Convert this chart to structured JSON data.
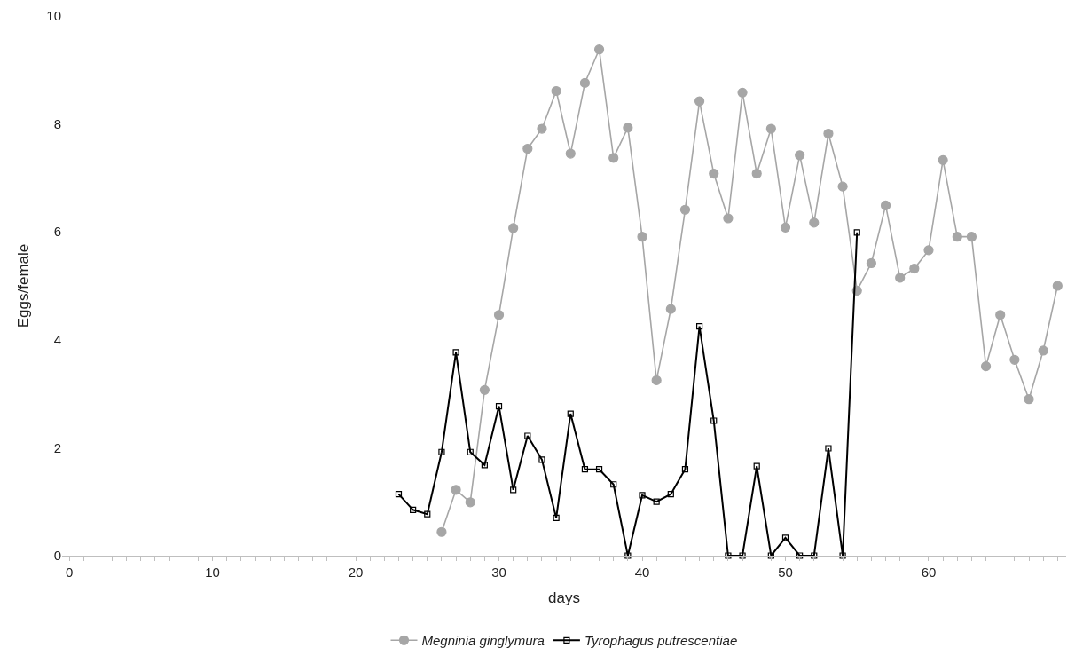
{
  "chart_data": {
    "type": "line",
    "xlabel": "days",
    "ylabel": "Eggs/female",
    "xlim": [
      -0.5,
      69.6
    ],
    "ylim": [
      0,
      10
    ],
    "yticks": [
      0,
      2,
      4,
      6,
      8,
      10
    ],
    "xticks": [
      0,
      {
        "value": 1,
        "label": null
      },
      {
        "value": 2,
        "label": null
      },
      {
        "value": 3,
        "label": null
      },
      {
        "value": 4,
        "label": null
      },
      {
        "value": 5,
        "label": null
      },
      {
        "value": 6,
        "label": null
      },
      {
        "value": 7,
        "label": null
      },
      {
        "value": 8,
        "label": null
      },
      {
        "value": 9,
        "label": null
      },
      10,
      {
        "value": 11,
        "label": null
      },
      {
        "value": 12,
        "label": null
      },
      {
        "value": 13,
        "label": null
      },
      {
        "value": 14,
        "label": null
      },
      {
        "value": 15,
        "label": null
      },
      {
        "value": 16,
        "label": null
      },
      {
        "value": 17,
        "label": null
      },
      {
        "value": 18,
        "label": null
      },
      {
        "value": 19,
        "label": null
      },
      20,
      {
        "value": 21,
        "label": null
      },
      {
        "value": 22,
        "label": null
      },
      {
        "value": 23,
        "label": null
      },
      {
        "value": 24,
        "label": null
      },
      {
        "value": 25,
        "label": null
      },
      {
        "value": 26,
        "label": null
      },
      {
        "value": 27,
        "label": null
      },
      {
        "value": 28,
        "label": null
      },
      {
        "value": 29,
        "label": null
      },
      30,
      {
        "value": 31,
        "label": null
      },
      {
        "value": 32,
        "label": null
      },
      {
        "value": 33,
        "label": null
      },
      {
        "value": 34,
        "label": null
      },
      {
        "value": 35,
        "label": null
      },
      {
        "value": 36,
        "label": null
      },
      {
        "value": 37,
        "label": null
      },
      {
        "value": 38,
        "label": null
      },
      {
        "value": 39,
        "label": null
      },
      40,
      {
        "value": 41,
        "label": null
      },
      {
        "value": 42,
        "label": null
      },
      {
        "value": 43,
        "label": null
      },
      {
        "value": 44,
        "label": null
      },
      {
        "value": 45,
        "label": null
      },
      {
        "value": 46,
        "label": null
      },
      {
        "value": 47,
        "label": null
      },
      {
        "value": 48,
        "label": null
      },
      {
        "value": 49,
        "label": null
      },
      50,
      {
        "value": 51,
        "label": null
      },
      {
        "value": 52,
        "label": null
      },
      {
        "value": 53,
        "label": null
      },
      {
        "value": 54,
        "label": null
      },
      {
        "value": 55,
        "label": null
      },
      {
        "value": 56,
        "label": null
      },
      {
        "value": 57,
        "label": null
      },
      {
        "value": 58,
        "label": null
      },
      {
        "value": 59,
        "label": null
      },
      60,
      {
        "value": 61,
        "label": null
      },
      {
        "value": 62,
        "label": null
      },
      {
        "value": 63,
        "label": null
      },
      {
        "value": 64,
        "label": null
      },
      {
        "value": 65,
        "label": null
      },
      {
        "value": 66,
        "label": null
      },
      {
        "value": 67,
        "label": null
      },
      {
        "value": 68,
        "label": null
      },
      {
        "value": 69,
        "label": null
      }
    ],
    "legend": "bottom",
    "line_style": "solid",
    "series": [
      {
        "name": "Megninia ginglymura",
        "color": "#a6a6a6",
        "marker": "circle",
        "x": [
          26,
          27,
          28,
          29,
          30,
          31,
          32,
          33,
          34,
          35,
          36,
          37,
          38,
          39,
          40,
          41,
          42,
          43,
          44,
          45,
          46,
          47,
          48,
          49,
          50,
          51,
          52,
          53,
          54,
          55,
          56,
          57,
          58,
          59,
          60,
          61,
          62,
          63,
          64,
          65,
          66,
          67,
          68,
          69
        ],
        "values": [
          0.44,
          1.22,
          0.99,
          3.07,
          4.46,
          6.07,
          7.54,
          7.91,
          8.61,
          7.45,
          8.76,
          9.38,
          7.37,
          7.93,
          5.91,
          3.25,
          4.57,
          6.41,
          8.42,
          7.08,
          6.25,
          8.58,
          7.08,
          7.91,
          6.08,
          7.42,
          6.17,
          7.82,
          6.84,
          4.91,
          5.42,
          6.49,
          5.15,
          5.32,
          5.66,
          7.33,
          5.91,
          5.91,
          3.51,
          4.46,
          3.63,
          2.9,
          3.8,
          5.0
        ]
      },
      {
        "name": "Tyrophagus putrescentiae",
        "color": "#000000",
        "marker": "square",
        "x": [
          23,
          24,
          25,
          26,
          27,
          28,
          29,
          30,
          31,
          32,
          33,
          34,
          35,
          36,
          37,
          38,
          39,
          40,
          41,
          42,
          43,
          44,
          45,
          46,
          47,
          48,
          49,
          50,
          51,
          52,
          53,
          54,
          55
        ],
        "values": [
          1.14,
          0.85,
          0.77,
          1.92,
          3.77,
          1.92,
          1.68,
          2.77,
          1.22,
          2.22,
          1.78,
          0.7,
          2.63,
          1.6,
          1.6,
          1.32,
          0,
          1.12,
          1.0,
          1.14,
          1.6,
          4.25,
          2.5,
          0,
          0,
          1.66,
          0,
          0.33,
          0,
          0,
          1.99,
          0,
          5.99
        ]
      }
    ]
  }
}
